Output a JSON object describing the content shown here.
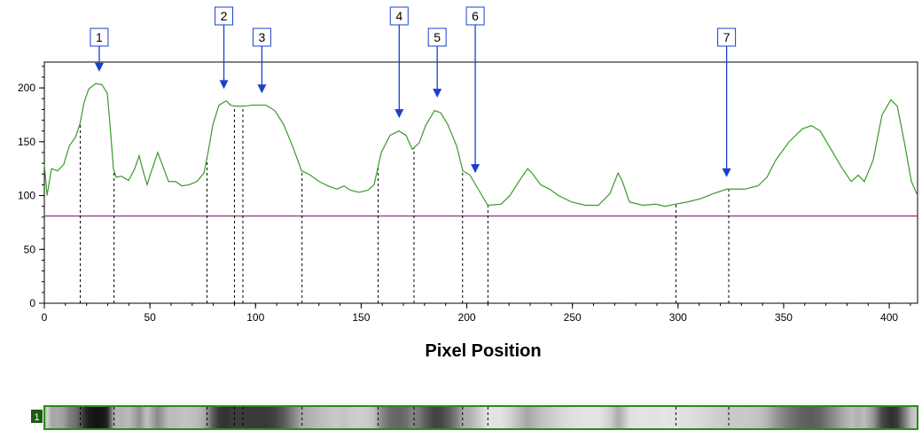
{
  "chart_data": {
    "type": "line",
    "xlabel": "Pixel Position",
    "x": [
      0,
      1.3,
      3.4,
      6.3,
      9.2,
      11.8,
      14.7,
      16.8,
      18.9,
      21,
      24.3,
      27.3,
      29.8,
      31.1,
      32.7,
      34,
      36.5,
      39.9,
      42.8,
      44.9,
      47,
      48.7,
      50.4,
      53.7,
      55.8,
      58.8,
      62.1,
      65.1,
      68.5,
      72.2,
      75.6,
      77.7,
      79.8,
      82.7,
      86.1,
      88.1,
      90.3,
      94.4,
      98.6,
      104.9,
      109.1,
      113.3,
      117.5,
      121.8,
      125.9,
      130.1,
      134.3,
      138.5,
      141.9,
      144.8,
      149,
      153.2,
      156.1,
      159.5,
      163.7,
      167.9,
      171.2,
      174.2,
      177.5,
      180.5,
      184.7,
      187.6,
      191,
      195.2,
      198.1,
      201.5,
      205.7,
      209.9,
      216.2,
      220.4,
      224.6,
      228.8,
      230.8,
      235,
      239.2,
      243.4,
      249.7,
      256,
      262.3,
      267.8,
      271.6,
      273.7,
      277,
      283.3,
      289.6,
      293.8,
      298.8,
      304.3,
      310.6,
      316.9,
      323.2,
      331.6,
      337.9,
      342.1,
      346.3,
      352.6,
      358.9,
      363.1,
      367.3,
      371.5,
      377.8,
      382,
      385.3,
      388.2,
      392.4,
      396.6,
      400.8,
      403.8,
      407.1,
      410.5,
      413.4
    ],
    "series": [
      {
        "color": "#3a9a2a",
        "values": [
          129,
          100,
          125,
          123,
          129,
          146,
          154,
          166,
          187,
          199,
          204,
          203,
          195,
          166,
          125,
          117,
          118,
          114,
          125,
          137,
          121,
          110,
          121,
          140,
          129,
          113,
          113,
          109,
          110,
          113,
          121,
          142,
          166,
          184,
          188,
          184,
          183,
          183,
          184,
          184,
          179,
          166,
          146,
          123,
          119,
          113,
          109,
          106,
          109,
          105,
          103,
          105,
          110,
          140,
          156,
          160,
          156,
          143,
          149,
          165,
          179,
          177,
          166,
          146,
          123,
          119,
          105,
          91,
          92,
          100,
          113,
          125,
          121,
          110,
          106,
          100,
          94,
          91,
          91,
          102,
          121,
          113,
          94,
          91,
          92,
          90,
          92,
          94,
          97,
          102,
          106,
          106,
          109,
          117,
          133,
          150,
          162,
          165,
          160,
          146,
          125,
          113,
          119,
          113,
          133,
          175,
          189,
          183,
          150,
          113,
          100
        ]
      }
    ],
    "baseline": {
      "value": 81,
      "color": "#a0307a"
    },
    "boundaries": [
      17,
      33,
      77,
      90,
      94,
      122,
      158,
      175,
      198,
      210,
      299,
      324
    ],
    "peaks": [
      {
        "label": "1",
        "x": 26,
        "y": 215
      },
      {
        "label": "2",
        "x": 85,
        "y": 199
      },
      {
        "label": "3",
        "x": 103,
        "y": 195
      },
      {
        "label": "4",
        "x": 168,
        "y": 172
      },
      {
        "label": "5",
        "x": 186,
        "y": 191
      },
      {
        "label": "6",
        "x": 204,
        "y": 121
      },
      {
        "label": "7",
        "x": 323,
        "y": 117
      }
    ],
    "lane": "1",
    "xlim": [
      0,
      413.4
    ],
    "ylim": [
      0,
      224
    ],
    "xticks": [
      0,
      50,
      100,
      150,
      200,
      250,
      300,
      350,
      400
    ],
    "yticks": [
      0,
      50,
      100,
      150,
      200
    ]
  }
}
